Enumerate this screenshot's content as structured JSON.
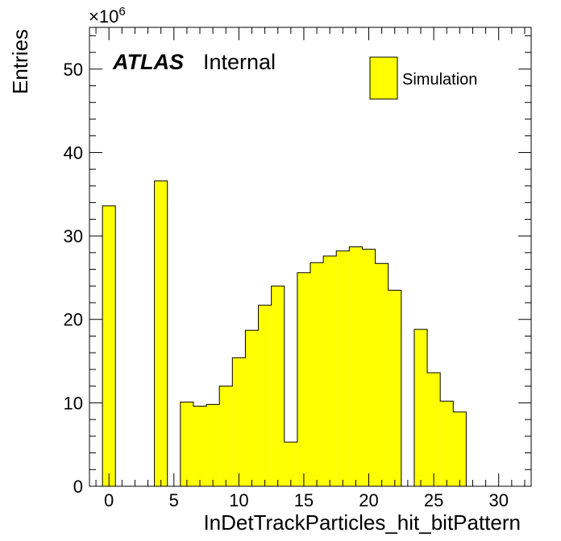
{
  "chart_data": {
    "type": "bar",
    "xlabel": "InDetTrackParticles_hit_bitPattern",
    "ylabel": "Entries",
    "y_multiplier": "×10",
    "y_multiplier_exp": "6",
    "xlim": [
      -1.5,
      32.5
    ],
    "ylim": [
      0,
      55
    ],
    "xticks": [
      0,
      5,
      10,
      15,
      20,
      25,
      30
    ],
    "yticks": [
      0,
      10,
      20,
      30,
      40,
      50
    ],
    "bin_width": 1,
    "bins_x": [
      0,
      1,
      2,
      3,
      4,
      5,
      6,
      7,
      8,
      9,
      10,
      11,
      12,
      13,
      14,
      15,
      16,
      17,
      18,
      19,
      20,
      21,
      22,
      23,
      24,
      25,
      26,
      27,
      28,
      29,
      30,
      31
    ],
    "values": [
      33.6,
      0,
      0,
      0,
      36.6,
      0,
      10.1,
      9.6,
      9.8,
      12.0,
      15.4,
      18.7,
      21.7,
      24.0,
      5.3,
      25.6,
      26.8,
      27.6,
      28.2,
      28.7,
      28.4,
      26.7,
      23.5,
      0,
      18.8,
      13.6,
      10.2,
      8.9,
      0,
      0,
      0,
      0
    ],
    "fill_color": "#ffff00",
    "line_color": "#000000",
    "grid": false,
    "legend_position": "top-right",
    "series": [
      {
        "name": "Simulation"
      }
    ]
  },
  "labels": {
    "atlas": "ATLAS",
    "internal": "Internal",
    "legend_entry": "Simulation"
  }
}
